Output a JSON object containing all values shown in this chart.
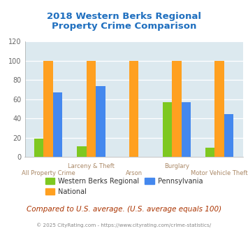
{
  "title": "2018 Western Berks Regional\nProperty Crime Comparison",
  "title_color": "#1F6FBF",
  "categories": [
    "All Property Crime",
    "Larceny & Theft",
    "Arson",
    "Burglary",
    "Motor Vehicle Theft"
  ],
  "series": {
    "Western Berks Regional": [
      19,
      11,
      0,
      57,
      10
    ],
    "National": [
      100,
      100,
      100,
      100,
      100
    ],
    "Pennsylvania": [
      67,
      74,
      0,
      57,
      45
    ]
  },
  "colors": {
    "Western Berks Regional": "#7EC820",
    "National": "#FFA020",
    "Pennsylvania": "#4488EE"
  },
  "ylim": [
    0,
    120
  ],
  "yticks": [
    0,
    20,
    40,
    60,
    80,
    100,
    120
  ],
  "plot_bg": "#DCE9EF",
  "fig_bg": "#FFFFFF",
  "footer_text": "Compared to U.S. average. (U.S. average equals 100)",
  "footer_color": "#AA3300",
  "copyright_text": "© 2025 CityRating.com - https://www.cityrating.com/crime-statistics/",
  "copyright_color": "#888888",
  "category_color": "#AA8866",
  "bar_width": 0.22,
  "legend_order": [
    "Western Berks Regional",
    "National",
    "Pennsylvania"
  ]
}
